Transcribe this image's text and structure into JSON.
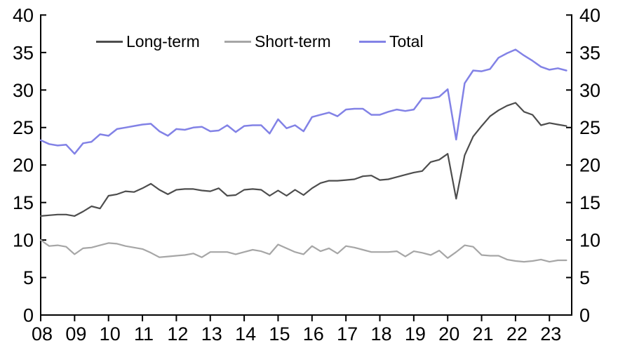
{
  "chart_data": {
    "type": "line",
    "title": "",
    "xlabel": "",
    "ylabel": "",
    "ylim": [
      0,
      40
    ],
    "y_tick_step": 5,
    "y_ticks": [
      0,
      5,
      10,
      15,
      20,
      25,
      30,
      35,
      40
    ],
    "x_tick_labels": [
      "08",
      "09",
      "10",
      "11",
      "12",
      "13",
      "14",
      "15",
      "16",
      "17",
      "18",
      "19",
      "20",
      "21",
      "22",
      "23"
    ],
    "x_start_year": 2008,
    "points_per_year": 4,
    "grid": false,
    "legend_position": "top-center",
    "axis_color": "#000000",
    "text_color": "#000000",
    "series": [
      {
        "name": "Long-term",
        "color": "#4d4d4d",
        "values": [
          13.2,
          13.3,
          13.4,
          13.4,
          13.2,
          13.8,
          14.5,
          14.2,
          15.9,
          16.1,
          16.5,
          16.4,
          16.9,
          17.5,
          16.7,
          16.1,
          16.7,
          16.8,
          16.8,
          16.6,
          16.5,
          16.9,
          15.9,
          16.0,
          16.7,
          16.8,
          16.7,
          15.9,
          16.6,
          15.9,
          16.7,
          16.0,
          16.9,
          17.6,
          17.9,
          17.9,
          18.0,
          18.1,
          18.5,
          18.6,
          18.0,
          18.1,
          18.4,
          18.7,
          19.0,
          19.2,
          20.4,
          20.7,
          21.5,
          15.5,
          21.3,
          23.8,
          25.2,
          26.5,
          27.3,
          27.9,
          28.3,
          27.1,
          26.7,
          25.3,
          25.6,
          25.4,
          25.2
        ]
      },
      {
        "name": "Short-term",
        "color": "#a6a6a6",
        "values": [
          10.0,
          9.2,
          9.3,
          9.1,
          8.1,
          8.9,
          9.0,
          9.3,
          9.6,
          9.5,
          9.2,
          9.0,
          8.8,
          8.3,
          7.7,
          7.8,
          7.9,
          8.0,
          8.2,
          7.7,
          8.4,
          8.4,
          8.4,
          8.1,
          8.4,
          8.7,
          8.5,
          8.1,
          9.4,
          8.9,
          8.4,
          8.1,
          9.2,
          8.5,
          8.9,
          8.2,
          9.2,
          9.0,
          8.7,
          8.4,
          8.4,
          8.4,
          8.5,
          7.8,
          8.5,
          8.3,
          8.0,
          8.6,
          7.6,
          8.4,
          9.3,
          9.1,
          8.0,
          7.9,
          7.9,
          7.4,
          7.2,
          7.1,
          7.2,
          7.4,
          7.1,
          7.3,
          7.3
        ]
      },
      {
        "name": "Total",
        "color": "#8282e6",
        "values": [
          23.3,
          22.8,
          22.6,
          22.7,
          21.5,
          22.9,
          23.1,
          24.1,
          23.9,
          24.8,
          25.0,
          25.2,
          25.4,
          25.5,
          24.5,
          23.9,
          24.8,
          24.7,
          25.0,
          25.1,
          24.5,
          24.6,
          25.3,
          24.4,
          25.2,
          25.3,
          25.3,
          24.2,
          26.1,
          24.9,
          25.3,
          24.5,
          26.4,
          26.7,
          27.0,
          26.5,
          27.4,
          27.5,
          27.5,
          26.7,
          26.7,
          27.1,
          27.4,
          27.2,
          27.4,
          28.9,
          28.9,
          29.1,
          30.1,
          23.4,
          30.9,
          32.6,
          32.5,
          32.8,
          34.3,
          34.9,
          35.4,
          34.6,
          33.9,
          33.1,
          32.7,
          32.9,
          32.6
        ]
      }
    ]
  },
  "legend": {
    "items": [
      {
        "label": "Long-term"
      },
      {
        "label": "Short-term"
      },
      {
        "label": "Total"
      }
    ]
  }
}
